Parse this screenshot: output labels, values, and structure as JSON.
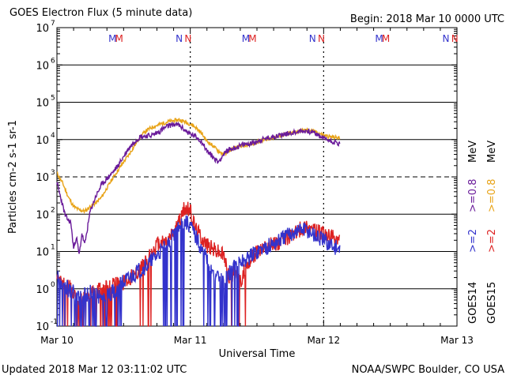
{
  "header": {
    "title": "GOES Electron Flux (5 minute data)",
    "begin": "Begin: 2018 Mar 10 0000 UTC"
  },
  "footer": {
    "updated": "Updated 2018 Mar 12 03:11:02 UTC",
    "credit": "NOAA/SWPC Boulder, CO USA"
  },
  "chart_data": {
    "type": "line",
    "title": "GOES Electron Flux (5 minute data)",
    "xlabel": "Universal Time",
    "ylabel": "Particles cm-2 s-1 sr-1",
    "y_scale": "log",
    "ylim": [
      0.1,
      10000000
    ],
    "xlim": [
      0,
      72
    ],
    "x_unit": "hours since 2018 Mar 10 0000 UTC",
    "x_ticks": [
      {
        "x": 0,
        "label": "Mar 10"
      },
      {
        "x": 24,
        "label": "Mar 11"
      },
      {
        "x": 48,
        "label": "Mar 12"
      },
      {
        "x": 72,
        "label": "Mar 13"
      }
    ],
    "y_ticks": [
      {
        "value": 0.1,
        "base": "10",
        "exp": "-1"
      },
      {
        "value": 1,
        "base": "10",
        "exp": "0"
      },
      {
        "value": 10,
        "base": "10",
        "exp": "1"
      },
      {
        "value": 100,
        "base": "10",
        "exp": "2"
      },
      {
        "value": 1000,
        "base": "10",
        "exp": "3"
      },
      {
        "value": 10000,
        "base": "10",
        "exp": "4"
      },
      {
        "value": 100000,
        "base": "10",
        "exp": "5"
      },
      {
        "value": 1000000,
        "base": "10",
        "exp": "6"
      },
      {
        "value": 10000000,
        "base": "10",
        "exp": "7"
      }
    ],
    "threshold_line": 1000,
    "grid": "horizontal",
    "day_dividers": [
      24,
      48
    ],
    "markers": [
      {
        "x": 10.0,
        "label": "M",
        "color": "#3333cc"
      },
      {
        "x": 11.2,
        "label": "M",
        "color": "#dd2222"
      },
      {
        "x": 22.0,
        "label": "N",
        "color": "#3333cc"
      },
      {
        "x": 23.6,
        "label": "N",
        "color": "#dd2222"
      },
      {
        "x": 34.0,
        "label": "M",
        "color": "#3333cc"
      },
      {
        "x": 35.2,
        "label": "M",
        "color": "#dd2222"
      },
      {
        "x": 46.0,
        "label": "N",
        "color": "#3333cc"
      },
      {
        "x": 47.6,
        "label": "N",
        "color": "#dd2222"
      },
      {
        "x": 58.0,
        "label": "M",
        "color": "#3333cc"
      },
      {
        "x": 59.2,
        "label": "M",
        "color": "#dd2222"
      },
      {
        "x": 70.0,
        "label": "N",
        "color": "#3333cc"
      },
      {
        "x": 71.6,
        "label": "N",
        "color": "#dd2222"
      }
    ],
    "legend": {
      "placement": "right",
      "groups": [
        {
          "satellite": "GOES14",
          "entries": [
            {
              "label": ">=2",
              "color": "#3333cc"
            },
            {
              "label": ">=0.8",
              "color": "#6a1b9a"
            }
          ],
          "unit": "MeV"
        },
        {
          "satellite": "GOES15",
          "entries": [
            {
              "label": ">=2",
              "color": "#dd2222"
            },
            {
              "label": ">=0.8",
              "color": "#e8a317"
            }
          ],
          "unit": "MeV"
        }
      ]
    },
    "series": [
      {
        "name": "GOES15 >=0.8 MeV",
        "color": "#e8a317",
        "noise": 0.05,
        "points": [
          [
            0,
            1300
          ],
          [
            0.5,
            900
          ],
          [
            1,
            700
          ],
          [
            2,
            300
          ],
          [
            3,
            160
          ],
          [
            4,
            130
          ],
          [
            5,
            120
          ],
          [
            6,
            160
          ],
          [
            7,
            200
          ],
          [
            8,
            280
          ],
          [
            9,
            500
          ],
          [
            10,
            900
          ],
          [
            11,
            1500
          ],
          [
            12,
            2500
          ],
          [
            13,
            4000
          ],
          [
            14,
            7000
          ],
          [
            15,
            12000
          ],
          [
            16,
            17000
          ],
          [
            17,
            21000
          ],
          [
            18,
            24000
          ],
          [
            19,
            27000
          ],
          [
            20,
            30000
          ],
          [
            21,
            32000
          ],
          [
            22,
            34000
          ],
          [
            23,
            30000
          ],
          [
            24,
            26000
          ],
          [
            25,
            21000
          ],
          [
            26,
            15000
          ],
          [
            27,
            9000
          ],
          [
            28,
            7000
          ],
          [
            29,
            5000
          ],
          [
            30,
            4000
          ],
          [
            31,
            5000
          ],
          [
            32,
            6000
          ],
          [
            33,
            6500
          ],
          [
            34,
            7000
          ],
          [
            35,
            7500
          ],
          [
            36,
            8500
          ],
          [
            37,
            9500
          ],
          [
            38,
            10500
          ],
          [
            39,
            11500
          ],
          [
            40,
            12500
          ],
          [
            41,
            13500
          ],
          [
            42,
            14500
          ],
          [
            43,
            16000
          ],
          [
            44,
            17500
          ],
          [
            45,
            18000
          ],
          [
            46,
            17000
          ],
          [
            47,
            15000
          ],
          [
            48,
            13000
          ],
          [
            49,
            12000
          ],
          [
            50,
            11500
          ],
          [
            51,
            11000
          ]
        ]
      },
      {
        "name": "GOES14 >=0.8 MeV",
        "color": "#6a1b9a",
        "noise": 0.07,
        "points": [
          [
            0,
            700
          ],
          [
            0.5,
            350
          ],
          [
            1,
            180
          ],
          [
            1.5,
            90
          ],
          [
            2,
            70
          ],
          [
            2.5,
            60
          ],
          [
            3,
            12
          ],
          [
            3.5,
            25
          ],
          [
            4,
            8
          ],
          [
            4.5,
            30
          ],
          [
            5,
            15
          ],
          [
            6,
            120
          ],
          [
            7,
            300
          ],
          [
            8,
            600
          ],
          [
            9,
            900
          ],
          [
            10,
            1300
          ],
          [
            11,
            2000
          ],
          [
            12,
            3500
          ],
          [
            13,
            6000
          ],
          [
            14,
            9000
          ],
          [
            15,
            12000
          ],
          [
            16,
            12500
          ],
          [
            17,
            13000
          ],
          [
            18,
            15000
          ],
          [
            19,
            19000
          ],
          [
            20,
            23000
          ],
          [
            21,
            26000
          ],
          [
            22,
            24000
          ],
          [
            23,
            18000
          ],
          [
            24,
            14000
          ],
          [
            25,
            12000
          ],
          [
            26,
            9000
          ],
          [
            27,
            5000
          ],
          [
            28,
            3500
          ],
          [
            29,
            2500
          ],
          [
            30,
            4000
          ],
          [
            31,
            5500
          ],
          [
            32,
            6000
          ],
          [
            33,
            6800
          ],
          [
            34,
            7500
          ],
          [
            35,
            8000
          ],
          [
            36,
            9000
          ],
          [
            37,
            10000
          ],
          [
            38,
            11000
          ],
          [
            39,
            12000
          ],
          [
            40,
            13000
          ],
          [
            41,
            14000
          ],
          [
            42,
            15000
          ],
          [
            43,
            16000
          ],
          [
            44,
            16500
          ],
          [
            45,
            17000
          ],
          [
            46,
            16000
          ],
          [
            47,
            13000
          ],
          [
            48,
            11000
          ],
          [
            49,
            9500
          ],
          [
            50,
            8500
          ],
          [
            51,
            7500
          ]
        ]
      },
      {
        "name": "GOES15 >=2 MeV",
        "color": "#dd2222",
        "noise": 0.22,
        "floor": 0.1,
        "dropouts": [
          [
            0,
            11
          ],
          [
            15,
            17
          ],
          [
            31,
            34
          ]
        ],
        "points": [
          [
            0,
            1.5
          ],
          [
            2,
            1.2
          ],
          [
            4,
            0.5
          ],
          [
            6,
            0.8
          ],
          [
            8,
            1
          ],
          [
            10,
            1.2
          ],
          [
            12,
            1.5
          ],
          [
            14,
            2.5
          ],
          [
            16,
            5
          ],
          [
            18,
            15
          ],
          [
            20,
            20
          ],
          [
            21,
            35
          ],
          [
            22,
            60
          ],
          [
            23,
            150
          ],
          [
            24,
            120
          ],
          [
            25,
            40
          ],
          [
            26,
            25
          ],
          [
            27,
            15
          ],
          [
            28,
            12
          ],
          [
            29,
            10
          ],
          [
            30,
            8
          ],
          [
            31,
            2
          ],
          [
            32,
            3
          ],
          [
            33,
            1.5
          ],
          [
            34,
            4
          ],
          [
            35,
            7
          ],
          [
            36,
            10
          ],
          [
            37,
            12
          ],
          [
            38,
            14
          ],
          [
            39,
            16
          ],
          [
            40,
            18
          ],
          [
            41,
            22
          ],
          [
            42,
            26
          ],
          [
            43,
            32
          ],
          [
            44,
            42
          ],
          [
            45,
            50
          ],
          [
            46,
            40
          ],
          [
            47,
            32
          ],
          [
            48,
            28
          ],
          [
            49,
            25
          ],
          [
            50,
            22
          ],
          [
            51,
            20
          ]
        ]
      },
      {
        "name": "GOES14 >=2 MeV",
        "color": "#3333cc",
        "noise": 0.22,
        "floor": 0.1,
        "dropouts": [
          [
            0,
            12
          ],
          [
            19,
            23
          ],
          [
            26,
            33
          ]
        ],
        "points": [
          [
            0,
            2
          ],
          [
            2,
            1
          ],
          [
            4,
            0.6
          ],
          [
            6,
            0.8
          ],
          [
            8,
            0.6
          ],
          [
            10,
            0.8
          ],
          [
            12,
            1.5
          ],
          [
            14,
            2.5
          ],
          [
            16,
            4
          ],
          [
            18,
            8
          ],
          [
            20,
            15
          ],
          [
            21,
            30
          ],
          [
            22,
            45
          ],
          [
            23,
            65
          ],
          [
            24,
            50
          ],
          [
            25,
            25
          ],
          [
            26,
            12
          ],
          [
            27,
            6
          ],
          [
            28,
            3
          ],
          [
            29,
            2
          ],
          [
            30,
            1.5
          ],
          [
            31,
            2.5
          ],
          [
            32,
            4
          ],
          [
            33,
            5
          ],
          [
            34,
            6
          ],
          [
            35,
            8
          ],
          [
            36,
            10
          ],
          [
            37,
            12
          ],
          [
            38,
            14
          ],
          [
            39,
            16
          ],
          [
            40,
            20
          ],
          [
            41,
            25
          ],
          [
            42,
            30
          ],
          [
            43,
            35
          ],
          [
            44,
            40
          ],
          [
            45,
            38
          ],
          [
            46,
            30
          ],
          [
            47,
            24
          ],
          [
            48,
            20
          ],
          [
            49,
            16
          ],
          [
            50,
            13
          ],
          [
            51,
            11
          ]
        ]
      }
    ]
  }
}
